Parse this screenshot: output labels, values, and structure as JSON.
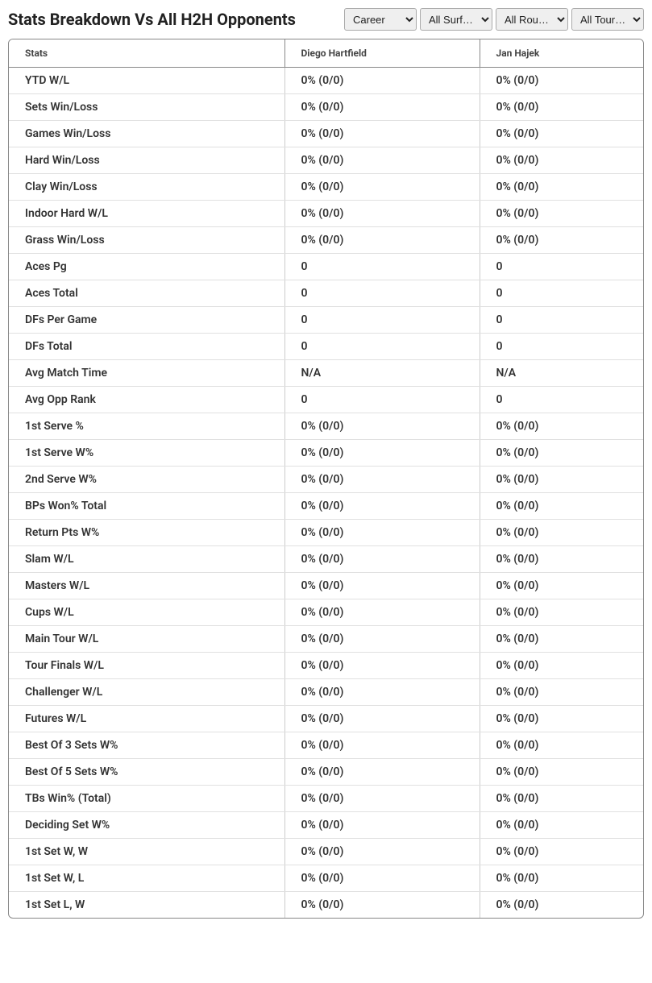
{
  "header": {
    "title": "Stats Breakdown Vs All H2H Opponents",
    "filters": {
      "career": "Career",
      "surface": "All Surf…",
      "round": "All Rou…",
      "tour": "All Tour…"
    }
  },
  "table": {
    "columns": {
      "stats": "Stats",
      "player1": "Diego Hartfield",
      "player2": "Jan Hajek"
    },
    "rows": [
      {
        "stat": "YTD W/L",
        "p1": "0% (0/0)",
        "p2": "0% (0/0)"
      },
      {
        "stat": "Sets Win/Loss",
        "p1": "0% (0/0)",
        "p2": "0% (0/0)"
      },
      {
        "stat": "Games Win/Loss",
        "p1": "0% (0/0)",
        "p2": "0% (0/0)"
      },
      {
        "stat": "Hard Win/Loss",
        "p1": "0% (0/0)",
        "p2": "0% (0/0)"
      },
      {
        "stat": "Clay Win/Loss",
        "p1": "0% (0/0)",
        "p2": "0% (0/0)"
      },
      {
        "stat": "Indoor Hard W/L",
        "p1": "0% (0/0)",
        "p2": "0% (0/0)"
      },
      {
        "stat": "Grass Win/Loss",
        "p1": "0% (0/0)",
        "p2": "0% (0/0)"
      },
      {
        "stat": "Aces Pg",
        "p1": "0",
        "p2": "0"
      },
      {
        "stat": "Aces Total",
        "p1": "0",
        "p2": "0"
      },
      {
        "stat": "DFs Per Game",
        "p1": "0",
        "p2": "0"
      },
      {
        "stat": "DFs Total",
        "p1": "0",
        "p2": "0"
      },
      {
        "stat": "Avg Match Time",
        "p1": "N/A",
        "p2": "N/A"
      },
      {
        "stat": "Avg Opp Rank",
        "p1": "0",
        "p2": "0"
      },
      {
        "stat": "1st Serve %",
        "p1": "0% (0/0)",
        "p2": "0% (0/0)"
      },
      {
        "stat": "1st Serve W%",
        "p1": "0% (0/0)",
        "p2": "0% (0/0)"
      },
      {
        "stat": "2nd Serve W%",
        "p1": "0% (0/0)",
        "p2": "0% (0/0)"
      },
      {
        "stat": "BPs Won% Total",
        "p1": "0% (0/0)",
        "p2": "0% (0/0)"
      },
      {
        "stat": "Return Pts W%",
        "p1": "0% (0/0)",
        "p2": "0% (0/0)"
      },
      {
        "stat": "Slam W/L",
        "p1": "0% (0/0)",
        "p2": "0% (0/0)"
      },
      {
        "stat": "Masters W/L",
        "p1": "0% (0/0)",
        "p2": "0% (0/0)"
      },
      {
        "stat": "Cups W/L",
        "p1": "0% (0/0)",
        "p2": "0% (0/0)"
      },
      {
        "stat": "Main Tour W/L",
        "p1": "0% (0/0)",
        "p2": "0% (0/0)"
      },
      {
        "stat": "Tour Finals W/L",
        "p1": "0% (0/0)",
        "p2": "0% (0/0)"
      },
      {
        "stat": "Challenger W/L",
        "p1": "0% (0/0)",
        "p2": "0% (0/0)"
      },
      {
        "stat": "Futures W/L",
        "p1": "0% (0/0)",
        "p2": "0% (0/0)"
      },
      {
        "stat": "Best Of 3 Sets W%",
        "p1": "0% (0/0)",
        "p2": "0% (0/0)"
      },
      {
        "stat": "Best Of 5 Sets W%",
        "p1": "0% (0/0)",
        "p2": "0% (0/0)"
      },
      {
        "stat": "TBs Win% (Total)",
        "p1": "0% (0/0)",
        "p2": "0% (0/0)"
      },
      {
        "stat": "Deciding Set W%",
        "p1": "0% (0/0)",
        "p2": "0% (0/0)"
      },
      {
        "stat": "1st Set W, W",
        "p1": "0% (0/0)",
        "p2": "0% (0/0)"
      },
      {
        "stat": "1st Set W, L",
        "p1": "0% (0/0)",
        "p2": "0% (0/0)"
      },
      {
        "stat": "1st Set L, W",
        "p1": "0% (0/0)",
        "p2": "0% (0/0)"
      }
    ]
  }
}
